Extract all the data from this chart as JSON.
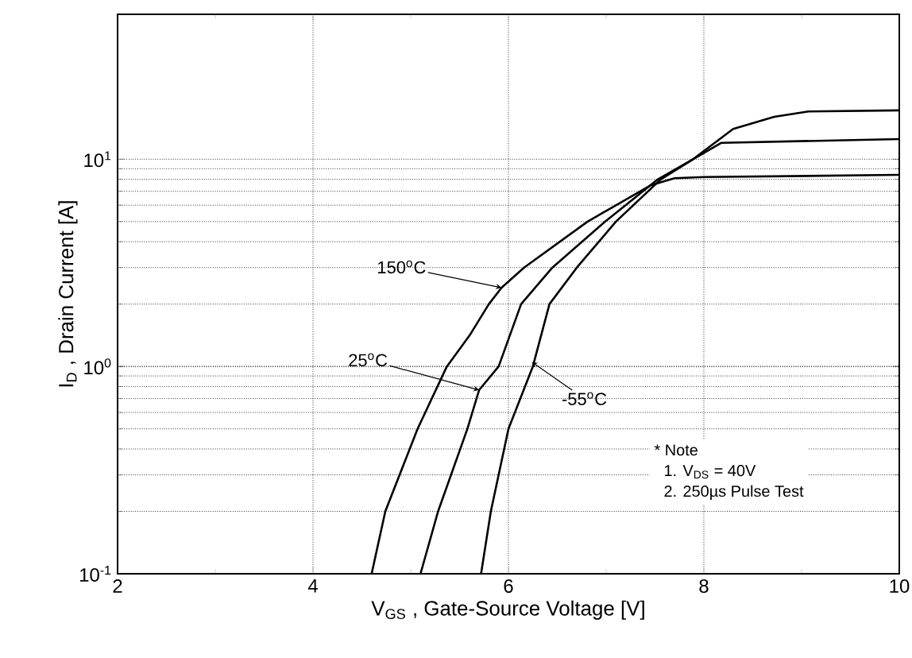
{
  "chart_data": {
    "type": "line",
    "xlabel": "V$_{GS}$ , Gate-Source Voltage  [V]",
    "ylabel": "I$_{D}$ , Drain Current  [A]",
    "log": "y",
    "grid": true,
    "marker": "none",
    "line_style": "solid",
    "xlim": [
      2,
      10
    ],
    "xticks": [
      2,
      4,
      6,
      8,
      10
    ],
    "ylim": [
      0.1,
      50
    ],
    "yticks": [
      {
        "value": 0.1,
        "label": "10$^{-1}$"
      },
      {
        "value": 1,
        "label": "10$^{0}$"
      },
      {
        "value": 10,
        "label": "10$^{1}$"
      }
    ],
    "series": [
      {
        "color": "#000000",
        "x": [
          4.6,
          4.74,
          5.07,
          5.37,
          5.61,
          5.8,
          5.93,
          6.16,
          6.81,
          7.46,
          7.7,
          8.0,
          10.0
        ],
        "values": [
          0.1,
          0.2,
          0.5,
          1,
          1.43,
          2,
          2.4,
          3,
          5,
          7.5,
          8.1,
          8.2,
          8.4
        ]
      },
      {
        "color": "#000000",
        "x": [
          5.1,
          5.28,
          5.58,
          5.7,
          5.9,
          6.13,
          6.45,
          6.99,
          7.53,
          7.89,
          8.18,
          10.0
        ],
        "values": [
          0.1,
          0.2,
          0.5,
          0.77,
          1,
          2,
          3,
          5,
          8,
          10,
          12,
          12.5
        ]
      },
      {
        "color": "#000000",
        "x": [
          5.72,
          5.82,
          6.0,
          6.25,
          6.42,
          6.7,
          7.1,
          7.56,
          7.89,
          8.3,
          8.72,
          9.07,
          10.0
        ],
        "values": [
          0.1,
          0.2,
          0.5,
          1,
          2,
          3,
          5,
          8,
          10,
          14,
          16,
          17,
          17.2
        ]
      }
    ],
    "annotations": [
      {
        "text": "150$^{o}$C",
        "x": 5.93,
        "y": 2.4
      },
      {
        "text": "25$^{o}$C",
        "x": 5.7,
        "y": 0.77
      },
      {
        "text": "-55$^{o}$C",
        "x": 6.24,
        "y": 1.05
      },
      "* Note",
      "1. V$_{DS}$ = 40V",
      "2. 250µs Pulse Test"
    ]
  }
}
